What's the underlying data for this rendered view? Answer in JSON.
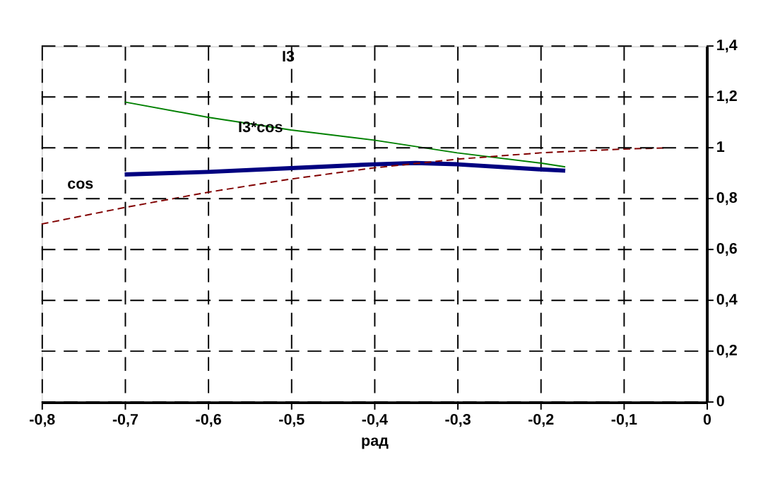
{
  "chart_data": {
    "type": "line",
    "xlabel": "рад",
    "xlim": [
      -0.8,
      0
    ],
    "ylim": [
      0,
      1.4
    ],
    "xticks": [
      {
        "value": -0.8,
        "label": "-0,8"
      },
      {
        "value": -0.7,
        "label": "-0,7"
      },
      {
        "value": -0.6,
        "label": "-0,6"
      },
      {
        "value": -0.5,
        "label": "-0,5"
      },
      {
        "value": -0.4,
        "label": "-0,4"
      },
      {
        "value": -0.3,
        "label": "-0,3"
      },
      {
        "value": -0.2,
        "label": "-0,2"
      },
      {
        "value": -0.1,
        "label": "-0,1"
      },
      {
        "value": 0,
        "label": "0"
      }
    ],
    "yticks": [
      {
        "value": 0,
        "label": "0"
      },
      {
        "value": 0.2,
        "label": "0,2"
      },
      {
        "value": 0.4,
        "label": "0,4"
      },
      {
        "value": 0.6,
        "label": "0,6"
      },
      {
        "value": 0.8,
        "label": "0,8"
      },
      {
        "value": 1,
        "label": "1"
      },
      {
        "value": 1.2,
        "label": "1,2"
      },
      {
        "value": 1.4,
        "label": "1,4"
      }
    ],
    "grid": true,
    "marker": "none",
    "series": [
      {
        "color": "#008000",
        "line_style": "solid",
        "x": [
          -0.7,
          -0.6,
          -0.5,
          -0.4,
          -0.3,
          -0.2,
          -0.17
        ],
        "values": [
          1.18,
          1.12,
          1.07,
          1.03,
          0.98,
          0.94,
          0.925
        ]
      },
      {
        "color": "#000080",
        "line_style": "solid",
        "x": [
          -0.7,
          -0.6,
          -0.5,
          -0.4,
          -0.35,
          -0.3,
          -0.2,
          -0.17
        ],
        "values": [
          0.895,
          0.905,
          0.92,
          0.935,
          0.94,
          0.935,
          0.915,
          0.91
        ]
      },
      {
        "color": "#800000",
        "line_style": "dashed",
        "x": [
          -0.8,
          -0.7,
          -0.6,
          -0.5,
          -0.4,
          -0.3,
          -0.2,
          -0.1,
          -0.05
        ],
        "values": [
          0.7,
          0.765,
          0.825,
          0.877,
          0.921,
          0.955,
          0.98,
          0.995,
          0.999
        ]
      }
    ],
    "annotations": [
      "I3",
      "I3*cos",
      "cos"
    ]
  }
}
